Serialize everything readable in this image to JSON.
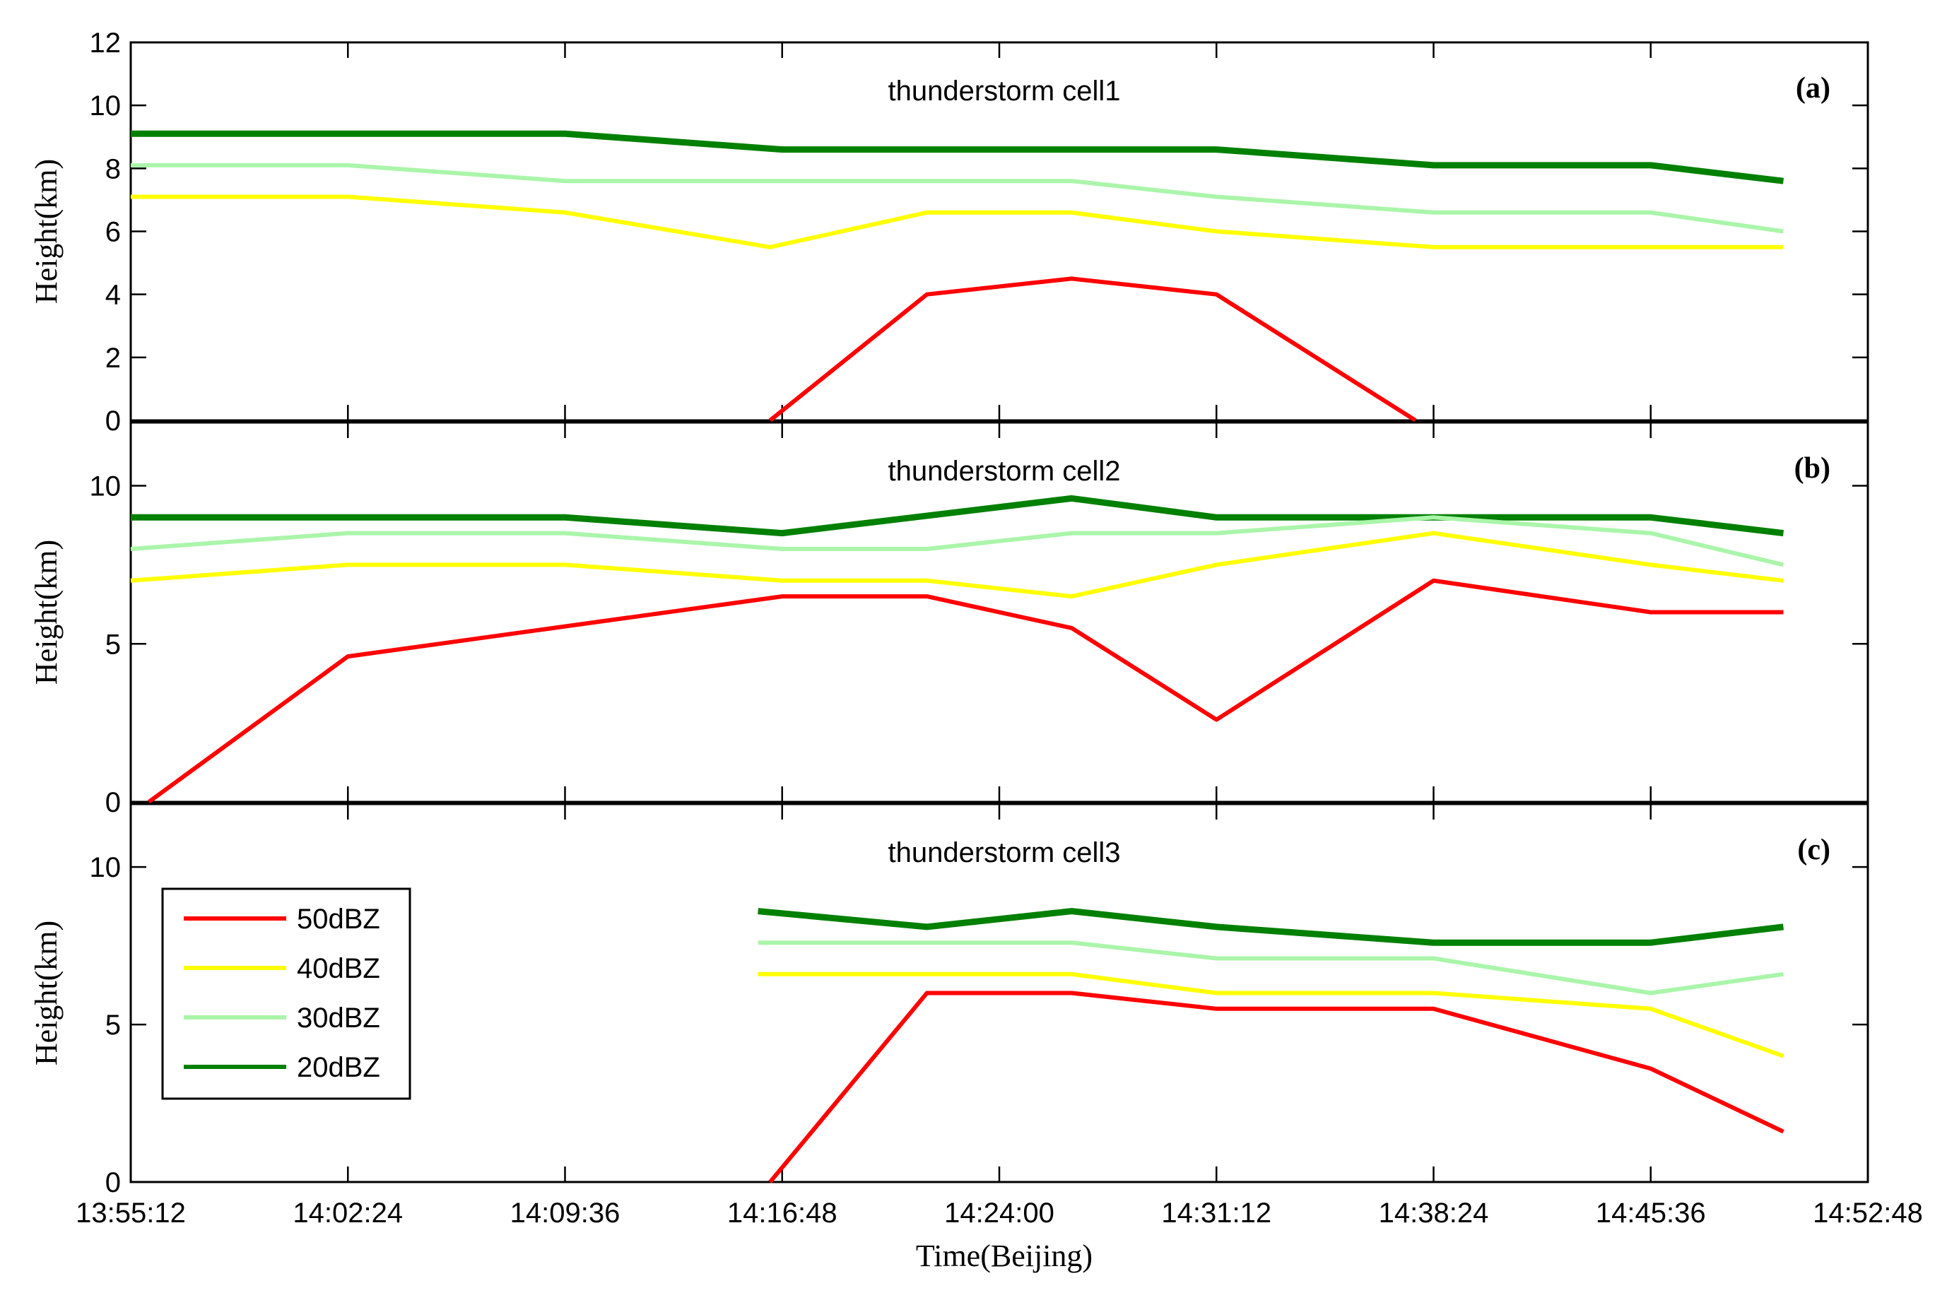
{
  "chart_data": [
    {
      "type": "line",
      "title": "thunderstorm cell1",
      "panel_label": "(a)",
      "ylabel": "Height(km)",
      "ylim": [
        0,
        12
      ],
      "yticks": [
        0,
        2,
        4,
        6,
        8,
        10,
        12
      ],
      "series": [
        {
          "name": "20dBZ",
          "color": "#008000",
          "points": [
            [
              "13:55:12",
              9.1
            ],
            [
              "14:09:36",
              9.1
            ],
            [
              "14:16:48",
              8.6
            ],
            [
              "14:31:12",
              8.6
            ],
            [
              "14:38:24",
              8.1
            ],
            [
              "14:45:36",
              8.1
            ],
            [
              "14:50:00",
              7.6
            ]
          ]
        },
        {
          "name": "30dBZ",
          "color": "#aaf5aa",
          "points": [
            [
              "13:55:12",
              8.1
            ],
            [
              "14:02:24",
              8.1
            ],
            [
              "14:09:36",
              7.6
            ],
            [
              "14:26:24",
              7.6
            ],
            [
              "14:31:12",
              7.1
            ],
            [
              "14:38:24",
              6.6
            ],
            [
              "14:45:36",
              6.6
            ],
            [
              "14:50:00",
              6.0
            ]
          ]
        },
        {
          "name": "40dBZ",
          "color": "#ffff00",
          "points": [
            [
              "13:55:12",
              7.1
            ],
            [
              "14:02:24",
              7.1
            ],
            [
              "14:09:36",
              6.6
            ],
            [
              "14:16:24",
              5.5
            ],
            [
              "14:21:36",
              6.6
            ],
            [
              "14:26:24",
              6.6
            ],
            [
              "14:31:12",
              6.0
            ],
            [
              "14:38:24",
              5.5
            ],
            [
              "14:50:00",
              5.5
            ]
          ]
        },
        {
          "name": "50dBZ",
          "color": "#ff0000",
          "points": [
            [
              "14:16:24",
              0
            ],
            [
              "14:21:36",
              4.0
            ],
            [
              "14:26:24",
              4.5
            ],
            [
              "14:31:12",
              4.0
            ],
            [
              "14:37:48",
              0
            ]
          ]
        }
      ]
    },
    {
      "type": "line",
      "title": "thunderstorm cell2",
      "panel_label": "(b)",
      "ylabel": "Height(km)",
      "ylim": [
        0,
        12
      ],
      "yticks": [
        0,
        5,
        10
      ],
      "series": [
        {
          "name": "20dBZ",
          "color": "#008000",
          "points": [
            [
              "13:55:12",
              9.0
            ],
            [
              "14:09:36",
              9.0
            ],
            [
              "14:16:48",
              8.5
            ],
            [
              "14:26:24",
              9.6
            ],
            [
              "14:31:12",
              9.0
            ],
            [
              "14:45:36",
              9.0
            ],
            [
              "14:50:00",
              8.5
            ]
          ]
        },
        {
          "name": "30dBZ",
          "color": "#aaf5aa",
          "points": [
            [
              "13:55:12",
              8.0
            ],
            [
              "14:02:24",
              8.5
            ],
            [
              "14:09:36",
              8.5
            ],
            [
              "14:16:48",
              8.0
            ],
            [
              "14:21:36",
              8.0
            ],
            [
              "14:26:24",
              8.5
            ],
            [
              "14:31:12",
              8.5
            ],
            [
              "14:38:24",
              9.0
            ],
            [
              "14:45:36",
              8.5
            ],
            [
              "14:50:00",
              7.5
            ]
          ]
        },
        {
          "name": "40dBZ",
          "color": "#ffff00",
          "points": [
            [
              "13:55:12",
              7.0
            ],
            [
              "14:02:24",
              7.5
            ],
            [
              "14:09:36",
              7.5
            ],
            [
              "14:16:48",
              7.0
            ],
            [
              "14:21:36",
              7.0
            ],
            [
              "14:26:24",
              6.5
            ],
            [
              "14:31:12",
              7.5
            ],
            [
              "14:38:24",
              8.5
            ],
            [
              "14:45:36",
              7.5
            ],
            [
              "14:50:00",
              7.0
            ]
          ]
        },
        {
          "name": "50dBZ",
          "color": "#ff0000",
          "points": [
            [
              "13:55:48",
              0
            ],
            [
              "14:02:24",
              4.6
            ],
            [
              "14:16:48",
              6.5
            ],
            [
              "14:21:36",
              6.5
            ],
            [
              "14:26:24",
              5.5
            ],
            [
              "14:31:12",
              2.6
            ],
            [
              "14:38:24",
              7.0
            ],
            [
              "14:45:36",
              6.0
            ],
            [
              "14:50:00",
              6.0
            ]
          ]
        }
      ]
    },
    {
      "type": "line",
      "title": "thunderstorm cell3",
      "panel_label": "(c)",
      "ylabel": "Height(km)",
      "xlabel": "Time(Beijing)",
      "ylim": [
        0,
        12
      ],
      "yticks": [
        0,
        5,
        10
      ],
      "xticks": [
        "13:55:12",
        "14:02:24",
        "14:09:36",
        "14:16:48",
        "14:24:00",
        "14:31:12",
        "14:38:24",
        "14:45:36",
        "14:52:48"
      ],
      "legend": {
        "position": "left",
        "entries": [
          {
            "name": "50dBZ",
            "color": "#ff0000"
          },
          {
            "name": "40dBZ",
            "color": "#ffff00"
          },
          {
            "name": "30dBZ",
            "color": "#aaf5aa"
          },
          {
            "name": "20dBZ",
            "color": "#008000"
          }
        ]
      },
      "series": [
        {
          "name": "20dBZ",
          "color": "#008000",
          "points": [
            [
              "14:16:00",
              8.6
            ],
            [
              "14:21:36",
              8.1
            ],
            [
              "14:26:24",
              8.6
            ],
            [
              "14:31:12",
              8.1
            ],
            [
              "14:38:24",
              7.6
            ],
            [
              "14:45:36",
              7.6
            ],
            [
              "14:50:00",
              8.1
            ]
          ]
        },
        {
          "name": "30dBZ",
          "color": "#aaf5aa",
          "points": [
            [
              "14:16:00",
              7.6
            ],
            [
              "14:26:24",
              7.6
            ],
            [
              "14:31:12",
              7.1
            ],
            [
              "14:38:24",
              7.1
            ],
            [
              "14:45:36",
              6.0
            ],
            [
              "14:50:00",
              6.6
            ]
          ]
        },
        {
          "name": "40dBZ",
          "color": "#ffff00",
          "points": [
            [
              "14:16:00",
              6.6
            ],
            [
              "14:26:24",
              6.6
            ],
            [
              "14:31:12",
              6.0
            ],
            [
              "14:38:24",
              6.0
            ],
            [
              "14:45:36",
              5.5
            ],
            [
              "14:50:00",
              4.0
            ]
          ]
        },
        {
          "name": "50dBZ",
          "color": "#ff0000",
          "points": [
            [
              "14:16:24",
              0
            ],
            [
              "14:21:36",
              6.0
            ],
            [
              "14:26:24",
              6.0
            ],
            [
              "14:31:12",
              5.5
            ],
            [
              "14:38:24",
              5.5
            ],
            [
              "14:45:36",
              3.6
            ],
            [
              "14:50:00",
              1.6
            ]
          ]
        }
      ]
    }
  ]
}
